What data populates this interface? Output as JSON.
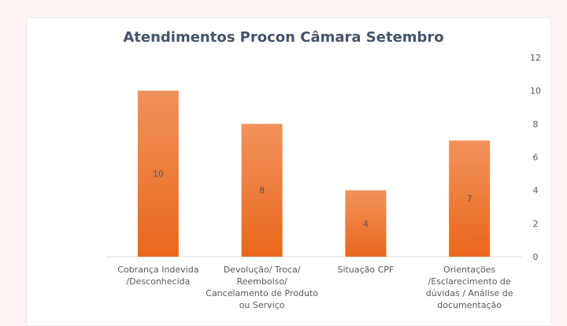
{
  "chart_data": {
    "type": "bar",
    "title": "Atendimentos Procon Câmara Setembro",
    "categories": [
      [
        "Cobrança Indevida",
        "/Desconhecida"
      ],
      [
        "Devolução/ Troca/",
        "Reembolso/",
        "Cancelamento de Produto",
        "ou Serviço"
      ],
      [
        "Situação CPF"
      ],
      [
        "Orientações",
        "/Esclarecimento de",
        "dúvidas / Análise de",
        "documentação"
      ]
    ],
    "values": [
      10,
      8,
      4,
      7
    ],
    "ylim": [
      0,
      12
    ],
    "yticks": [
      0,
      2,
      4,
      6,
      8,
      10,
      12
    ],
    "yaxis_position": "right",
    "xlabel": "",
    "ylabel": "",
    "grid": false,
    "colors": {
      "bar_top": "#f1925c",
      "bar_bottom": "#e9671b",
      "text": "#595959",
      "title": "#44546a"
    }
  }
}
